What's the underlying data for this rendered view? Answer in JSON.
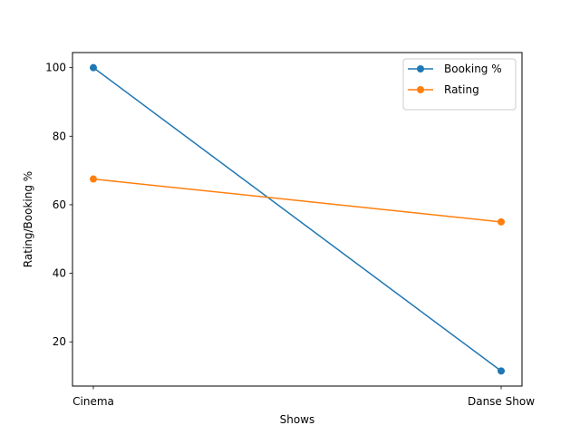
{
  "chart_data": {
    "type": "line",
    "categories": [
      "Cinema",
      "Danse Show"
    ],
    "series": [
      {
        "name": "Booking %",
        "values": [
          100,
          11.5
        ],
        "color": "#1f77b4"
      },
      {
        "name": "Rating",
        "values": [
          67.5,
          55
        ],
        "color": "#ff7f0e"
      }
    ],
    "xlabel": "Shows",
    "ylabel": "Rating/Booking %",
    "ylim": [
      7.1,
      104.4
    ],
    "yticks": [
      20,
      40,
      60,
      80,
      100
    ],
    "grid": false,
    "legend_position": "top-right"
  }
}
